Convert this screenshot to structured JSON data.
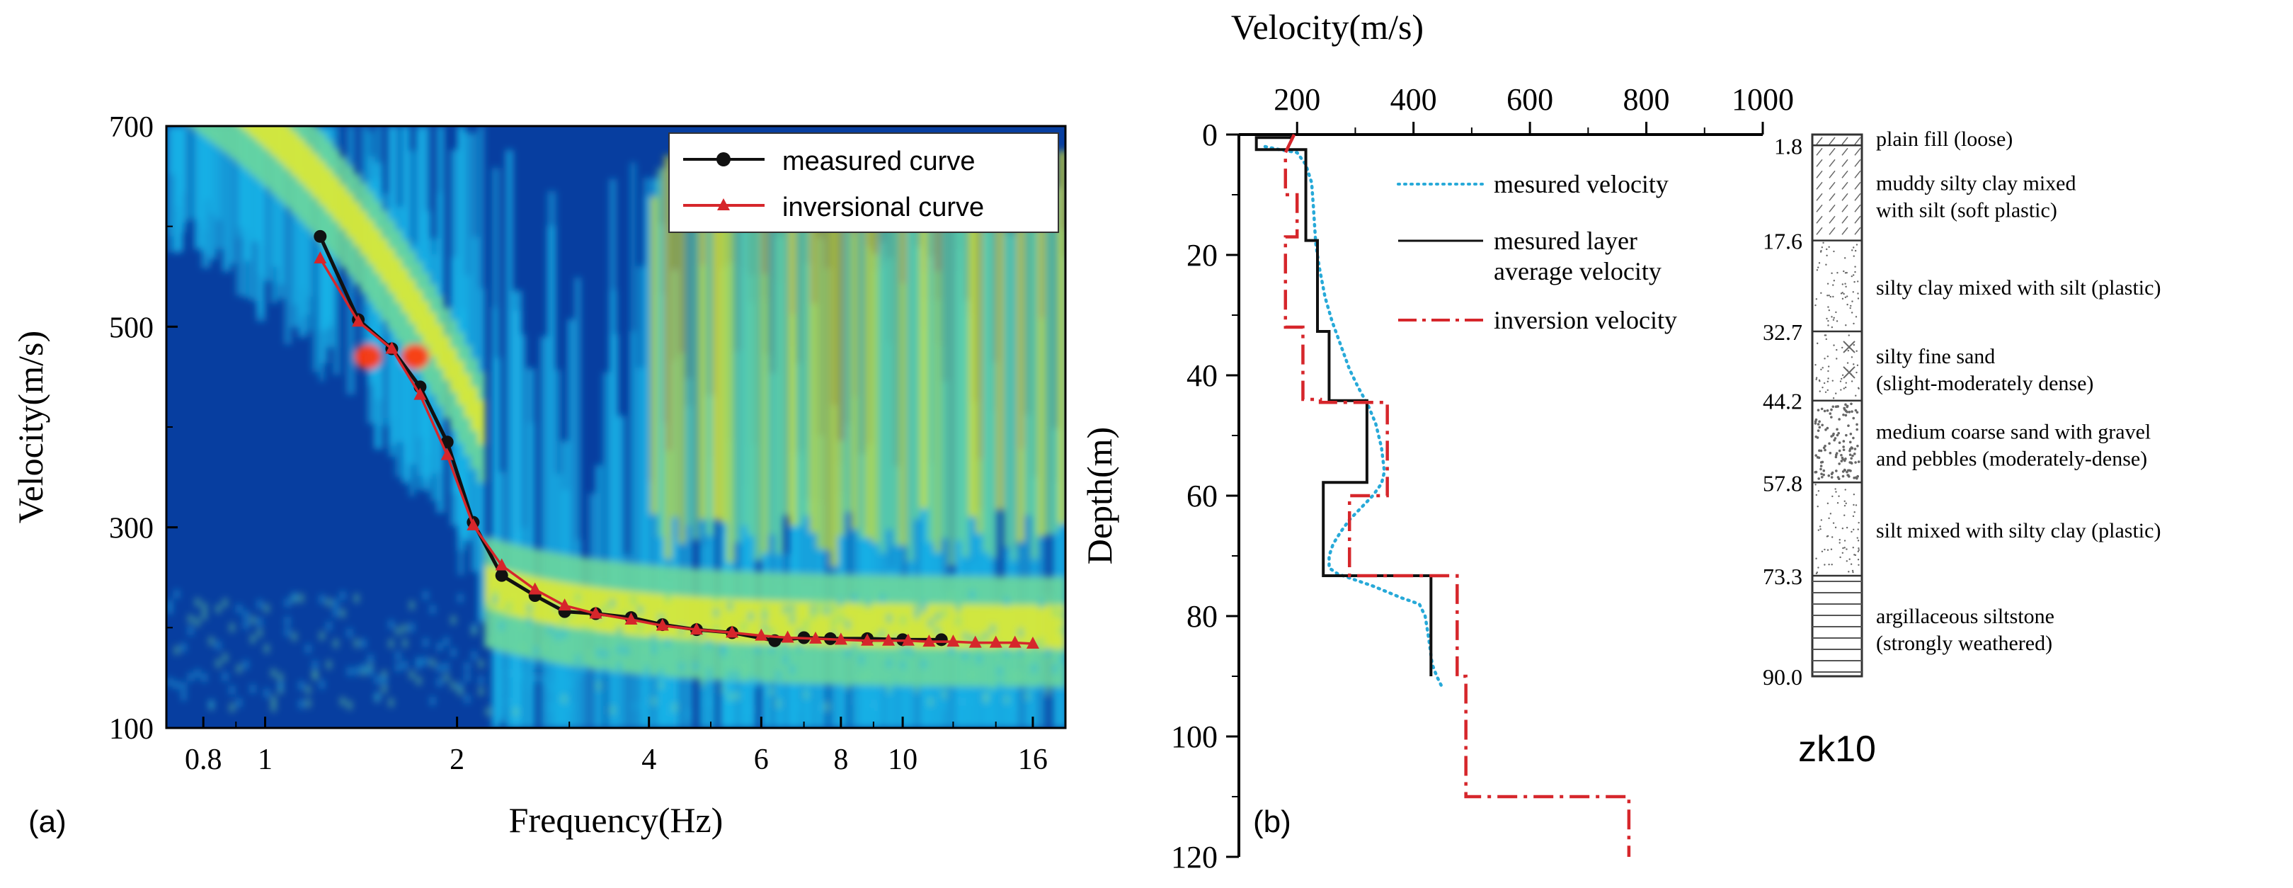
{
  "colors": {
    "measured_curve": "#111111",
    "inversional_curve": "#d6262b",
    "measured_velocity": "#27a9d8",
    "layer_average_velocity": "#111111",
    "inversion_velocity": "#d6262b",
    "spectrum_background": "#073ea0",
    "spectrum_cyan": "#1ab4e8",
    "spectrum_green": "#6ed89a",
    "spectrum_yellow": "#e6ea1e",
    "spectrum_red": "#ff3a12"
  },
  "chart_data": [
    {
      "id": "a",
      "type": "scatter",
      "panel_label": "(a)",
      "background": "dispersion energy spectrum image",
      "xlabel": "Frequency(Hz)",
      "ylabel": "Velocity(m/s)",
      "xscale": "log",
      "xlim": [
        0.7,
        18
      ],
      "ylim": [
        100,
        700
      ],
      "xticks": [
        0.8,
        1,
        2,
        4,
        6,
        8,
        10,
        16
      ],
      "xtick_labels": [
        "0.8",
        "1",
        "2",
        "4",
        "6",
        "8",
        "10",
        "16"
      ],
      "yticks": [
        100,
        300,
        500,
        700
      ],
      "ytick_labels": [
        "100",
        "300",
        "500",
        "700"
      ],
      "legend_position": "top-right",
      "series": [
        {
          "name": "measured curve",
          "marker": "circle",
          "color": "#111111",
          "x": [
            1.22,
            1.4,
            1.58,
            1.75,
            1.93,
            2.12,
            2.35,
            2.65,
            2.95,
            3.3,
            3.75,
            4.2,
            4.75,
            5.4,
            6.3,
            7.0,
            7.7,
            8.8,
            10.0,
            11.5
          ],
          "y": [
            590,
            507,
            478,
            440,
            385,
            305,
            252,
            232,
            216,
            214,
            210,
            203,
            198,
            195,
            187,
            190,
            189,
            189,
            188,
            188
          ]
        },
        {
          "name": "inversional curve",
          "marker": "triangle",
          "color": "#d6262b",
          "x": [
            1.22,
            1.4,
            1.58,
            1.75,
            1.93,
            2.12,
            2.35,
            2.65,
            2.95,
            3.3,
            3.75,
            4.2,
            4.75,
            5.4,
            6.0,
            6.6,
            7.3,
            8.0,
            8.8,
            9.5,
            10.2,
            11.0,
            12.0,
            13.0,
            14.0,
            15.0,
            16.0
          ],
          "y": [
            568,
            505,
            478,
            432,
            372,
            302,
            262,
            238,
            222,
            214,
            208,
            202,
            198,
            195,
            192,
            190,
            189,
            188,
            187,
            187,
            187,
            186,
            186,
            185,
            185,
            185,
            184
          ]
        }
      ]
    },
    {
      "id": "b",
      "type": "line",
      "panel_label": "(b)",
      "xlabel": "Velocity(m/s)",
      "ylabel": "Depth(m)",
      "xlim": [
        100,
        1000
      ],
      "ylim": [
        0,
        120
      ],
      "y_inverted": true,
      "x_axis_position": "top",
      "xticks": [
        200,
        400,
        600,
        800,
        1000
      ],
      "xtick_labels": [
        "200",
        "400",
        "600",
        "800",
        "1000"
      ],
      "yticks": [
        0,
        20,
        40,
        60,
        80,
        100,
        120
      ],
      "ytick_labels": [
        "0",
        "20",
        "40",
        "60",
        "80",
        "100",
        "120"
      ],
      "legend_position": "top-right",
      "series": [
        {
          "name": "mesured velocity",
          "style": "dotted",
          "color": "#27a9d8",
          "velocity": [
            145,
            170,
            200,
            215,
            225,
            228,
            230,
            232,
            238,
            248,
            260,
            275,
            290,
            305,
            322,
            335,
            345,
            350,
            345,
            330,
            310,
            290,
            275,
            262,
            255,
            255,
            270,
            330,
            380,
            410,
            420,
            425,
            428,
            432,
            440,
            450
          ],
          "depth": [
            2,
            2.5,
            3,
            5,
            8,
            12,
            15,
            18,
            22,
            27,
            31,
            35,
            39,
            42,
            45,
            48,
            52,
            56,
            58,
            60,
            62,
            64,
            66,
            68,
            70,
            72,
            73,
            75,
            77,
            78,
            80,
            83,
            85,
            88,
            90,
            92
          ]
        },
        {
          "name": "mesured layer average velocity",
          "style": "solid-step",
          "color": "#111111",
          "velocity": [
            190,
            190,
            130,
            130,
            215,
            215,
            235,
            235,
            255,
            255,
            320,
            320,
            245,
            245,
            430,
            430
          ],
          "depth": [
            0,
            0.5,
            0.5,
            2.5,
            2.5,
            17.6,
            17.6,
            32.7,
            32.7,
            44.2,
            44.2,
            57.8,
            57.8,
            73.3,
            73.3,
            90.0
          ]
        },
        {
          "name": "inversion velocity",
          "style": "dash-dot-step",
          "color": "#d6262b",
          "velocity": [
            195,
            180,
            180,
            200,
            200,
            180,
            180,
            210,
            210,
            240,
            240,
            355,
            355,
            290,
            290,
            475,
            475,
            490,
            490,
            770,
            770
          ],
          "depth": [
            0,
            3,
            10,
            10,
            17,
            17,
            32,
            32,
            44,
            44,
            44.5,
            44.5,
            60,
            60,
            73.3,
            73.3,
            90,
            90,
            110,
            110,
            120
          ]
        }
      ]
    }
  ],
  "panel_b": {
    "legend": {
      "measured_velocity": "mesured velocity",
      "layer_line1": "mesured layer",
      "layer_line2": "average velocity",
      "inversion_velocity": "inversion velocity"
    }
  },
  "borehole": {
    "name": "zk10",
    "layers": [
      {
        "top": 0,
        "bottom": 1.8,
        "depth_label": "1.8",
        "line1": "plain fill (loose)",
        "line2": "",
        "pattern": "fill"
      },
      {
        "top": 1.8,
        "bottom": 17.6,
        "depth_label": "17.6",
        "line1": "muddy silty clay mixed",
        "line2": "with silt (soft plastic)",
        "pattern": "muddy"
      },
      {
        "top": 17.6,
        "bottom": 32.7,
        "depth_label": "32.7",
        "line1": "silty clay mixed with silt (plastic)",
        "line2": "",
        "pattern": "silty-clay"
      },
      {
        "top": 32.7,
        "bottom": 44.2,
        "depth_label": "44.2",
        "line1": "silty fine sand",
        "line2": "(slight-moderately dense)",
        "pattern": "fine-sand"
      },
      {
        "top": 44.2,
        "bottom": 57.8,
        "depth_label": "57.8",
        "line1": "medium coarse sand with gravel",
        "line2": "and pebbles (moderately-dense)",
        "pattern": "gravel"
      },
      {
        "top": 57.8,
        "bottom": 73.3,
        "depth_label": "73.3",
        "line1": "silt mixed with silty clay (plastic)",
        "line2": "",
        "pattern": "silt"
      },
      {
        "top": 73.3,
        "bottom": 90.0,
        "depth_label": "90.0",
        "line1": "argillaceous siltstone",
        "line2": "(strongly weathered)",
        "pattern": "siltstone"
      }
    ]
  }
}
